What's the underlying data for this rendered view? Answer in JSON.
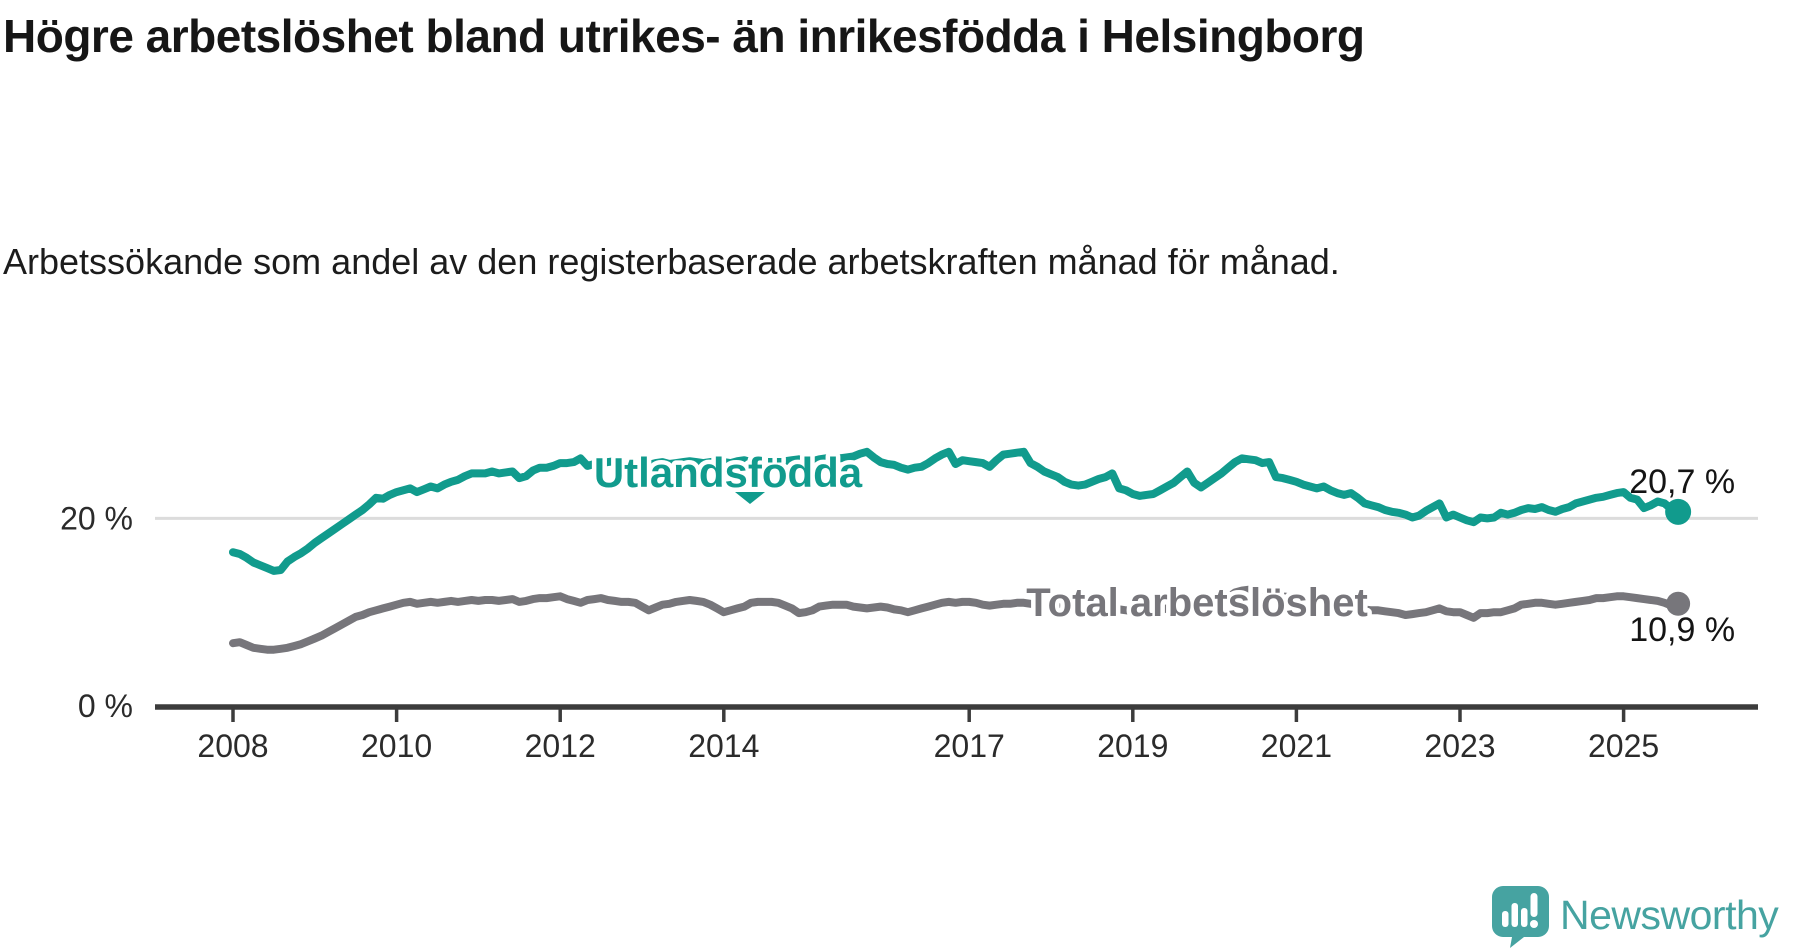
{
  "title": "Högre arbetslöshet bland utrikes- än inrikesfödda i Helsingborg",
  "subtitle": "Arbetssökande som andel av den registerbaserade arbetskraften månad för månad.",
  "chart_data": {
    "type": "line",
    "unit": "%",
    "frequency": "monthly",
    "x_start": "2008-01",
    "x_end": "2025-09",
    "ylim": [
      0,
      30
    ],
    "grid": "single horizontal gridline at 20 %",
    "legend_position": "inline labels on lines",
    "x_ticks": [
      {
        "label": "2008"
      },
      {
        "label": "2010"
      },
      {
        "label": "2012"
      },
      {
        "label": "2014"
      },
      {
        "label": "2017"
      },
      {
        "label": "2019"
      },
      {
        "label": "2021"
      },
      {
        "label": "2023"
      },
      {
        "label": "2025"
      }
    ],
    "y_ticks": [
      {
        "label": "0 %",
        "value": 0
      },
      {
        "label": "20 %",
        "value": 20
      }
    ],
    "series": [
      {
        "name": "Utlandsfödda",
        "color": "#119b8d",
        "end_label": "20,7 %",
        "end_value": 20.7,
        "values": [
          16.4,
          16.2,
          15.8,
          15.3,
          15.0,
          14.7,
          14.4,
          14.5,
          15.4,
          15.9,
          16.3,
          16.8,
          17.4,
          17.9,
          18.4,
          18.9,
          19.4,
          19.9,
          20.4,
          20.9,
          21.5,
          22.2,
          22.1,
          22.5,
          22.8,
          23.0,
          23.2,
          22.8,
          23.1,
          23.4,
          23.2,
          23.6,
          23.9,
          24.1,
          24.5,
          24.8,
          24.8,
          24.8,
          25.0,
          24.8,
          24.9,
          25.0,
          24.3,
          24.5,
          25.1,
          25.4,
          25.4,
          25.6,
          25.9,
          25.9,
          26.0,
          26.4,
          25.6,
          25.8,
          25.9,
          26.0,
          26.1,
          25.9,
          25.8,
          25.9,
          25.8,
          25.7,
          25.9,
          26.0,
          25.8,
          25.9,
          26.0,
          26.1,
          26.0,
          25.9,
          26.0,
          26.1,
          26.0,
          25.9,
          26.1,
          26.2,
          26.0,
          26.1,
          26.2,
          26.3,
          26.2,
          26.1,
          26.2,
          26.3,
          26.2,
          26.1,
          26.3,
          26.4,
          26.3,
          26.4,
          26.5,
          26.6,
          26.9,
          27.1,
          26.5,
          26.0,
          25.8,
          25.7,
          25.4,
          25.2,
          25.4,
          25.5,
          25.9,
          26.4,
          26.8,
          27.1,
          25.8,
          26.2,
          26.1,
          26.0,
          25.9,
          25.5,
          26.2,
          26.8,
          26.9,
          27.0,
          27.1,
          25.9,
          25.5,
          25.0,
          24.7,
          24.4,
          23.9,
          23.6,
          23.5,
          23.6,
          23.9,
          24.2,
          24.4,
          24.8,
          23.2,
          23.0,
          22.6,
          22.4,
          22.5,
          22.6,
          23.0,
          23.4,
          23.8,
          24.4,
          25.0,
          23.8,
          23.3,
          23.8,
          24.3,
          24.8,
          25.4,
          26.0,
          26.4,
          26.3,
          26.2,
          25.9,
          26.0,
          24.4,
          24.3,
          24.1,
          23.9,
          23.6,
          23.4,
          23.2,
          23.4,
          23.0,
          22.7,
          22.5,
          22.7,
          22.2,
          21.6,
          21.4,
          21.2,
          20.9,
          20.7,
          20.6,
          20.4,
          20.1,
          20.3,
          20.8,
          21.2,
          21.6,
          20.1,
          20.4,
          20.1,
          19.8,
          19.6,
          20.1,
          20.0,
          20.1,
          20.6,
          20.4,
          20.6,
          20.9,
          21.1,
          21.0,
          21.2,
          20.9,
          20.7,
          21.0,
          21.2,
          21.6,
          21.8,
          22.0,
          22.2,
          22.3,
          22.5,
          22.7,
          22.8,
          22.2,
          22.0,
          21.1,
          21.4,
          21.8,
          21.6,
          21.0,
          20.7
        ]
      },
      {
        "name": "Total arbetslöshet",
        "color": "#77767b",
        "end_label": "10,9 %",
        "end_value": 10.9,
        "values": [
          6.7,
          6.8,
          6.5,
          6.2,
          6.1,
          6.0,
          6.0,
          6.1,
          6.2,
          6.4,
          6.6,
          6.9,
          7.2,
          7.5,
          7.9,
          8.3,
          8.7,
          9.1,
          9.5,
          9.7,
          10.0,
          10.2,
          10.4,
          10.6,
          10.8,
          11.0,
          11.1,
          10.9,
          11.0,
          11.1,
          11.0,
          11.1,
          11.2,
          11.1,
          11.2,
          11.3,
          11.2,
          11.3,
          11.3,
          11.2,
          11.3,
          11.4,
          11.1,
          11.2,
          11.4,
          11.5,
          11.5,
          11.6,
          11.7,
          11.4,
          11.2,
          11.0,
          11.3,
          11.4,
          11.5,
          11.3,
          11.2,
          11.1,
          11.1,
          11.0,
          10.6,
          10.2,
          10.5,
          10.8,
          10.9,
          11.1,
          11.2,
          11.3,
          11.2,
          11.1,
          10.8,
          10.4,
          10.0,
          10.2,
          10.4,
          10.6,
          11.0,
          11.1,
          11.1,
          11.1,
          11.0,
          10.7,
          10.4,
          9.9,
          10.0,
          10.2,
          10.6,
          10.7,
          10.8,
          10.8,
          10.8,
          10.6,
          10.5,
          10.4,
          10.5,
          10.6,
          10.5,
          10.3,
          10.2,
          10.0,
          10.2,
          10.4,
          10.6,
          10.8,
          11.0,
          11.1,
          11.0,
          11.1,
          11.1,
          11.0,
          10.8,
          10.7,
          10.8,
          10.9,
          10.9,
          11.0,
          11.0,
          10.9,
          10.8,
          10.8,
          10.7,
          10.6,
          10.4,
          10.3,
          10.2,
          10.2,
          10.3,
          10.4,
          10.4,
          10.5,
          10.3,
          10.2,
          10.1,
          10.0,
          10.0,
          10.1,
          10.2,
          10.4,
          10.6,
          10.7,
          10.8,
          10.5,
          10.4,
          10.5,
          10.7,
          11.0,
          11.6,
          12.1,
          12.3,
          12.4,
          12.3,
          12.2,
          12.1,
          11.8,
          11.7,
          11.6,
          11.5,
          11.4,
          11.2,
          11.1,
          11.0,
          10.9,
          10.7,
          10.6,
          10.5,
          10.4,
          10.3,
          10.2,
          10.2,
          10.1,
          10.0,
          9.9,
          9.7,
          9.8,
          9.9,
          10.0,
          10.2,
          10.4,
          10.1,
          10.0,
          10.0,
          9.7,
          9.4,
          9.9,
          9.9,
          10.0,
          10.0,
          10.2,
          10.4,
          10.8,
          10.9,
          11.0,
          11.0,
          10.9,
          10.8,
          10.9,
          11.0,
          11.1,
          11.2,
          11.3,
          11.5,
          11.5,
          11.6,
          11.7,
          11.7,
          11.6,
          11.5,
          11.4,
          11.3,
          11.2,
          11.0,
          10.7,
          10.9
        ]
      }
    ]
  },
  "footer": {
    "brand": "Newsworthy"
  },
  "colors": {
    "accent_teal": "#119b8d",
    "series_gray": "#77767b",
    "logo_teal": "#46a3a1",
    "text": "#161616",
    "axis": "#3c3c3c",
    "gridline": "#dcdcdc"
  }
}
